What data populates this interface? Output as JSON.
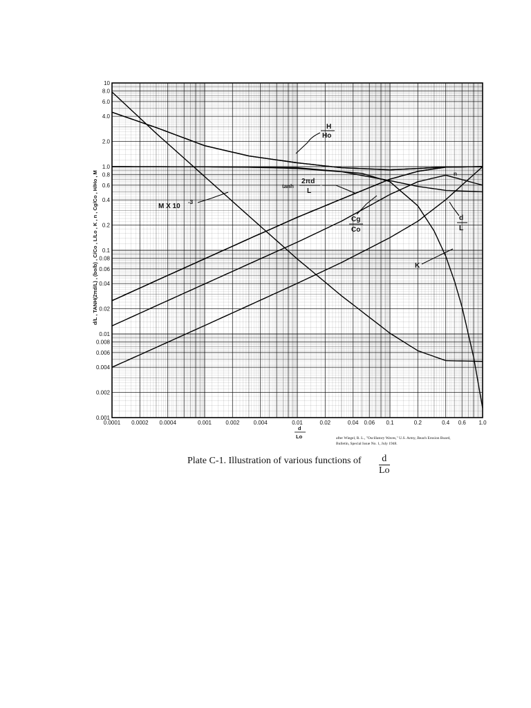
{
  "chart_data": {
    "type": "line",
    "xscale": "log",
    "yscale": "log",
    "xlim": [
      0.0001,
      1.0
    ],
    "ylim": [
      0.001,
      10
    ],
    "grid": true,
    "x_ticks": [
      "0.0001",
      "0.0002",
      "0.0004",
      "0.001",
      "0.002",
      "0.004",
      "0.01",
      "0.02",
      "0.04",
      "0.06",
      "0.1",
      "0.2",
      "0.4",
      "0.6",
      "1.0"
    ],
    "y_ticks": [
      "0.001",
      "0.002",
      "0.004",
      "0.006",
      "0.008",
      "0.01",
      "0.02",
      "0.04",
      "0.06",
      "0.08",
      "0.1",
      "0.2",
      "0.4",
      "0.6",
      "0.8",
      "1.0",
      "2.0",
      "4.0",
      "6.0",
      "8.0",
      "10"
    ],
    "xlabel_num": "d",
    "xlabel_den": "Lo",
    "ylabel": "d/L , TANH(2πd/L) , (bo/b) , C/Co , L/Lo , K , n , Cg/Co , H/Ho , M",
    "series": [
      {
        "x": [
          0.0001,
          0.0003,
          0.001,
          0.003,
          0.01,
          0.03,
          0.1,
          0.2,
          0.4,
          1.0
        ],
        "y": [
          0.004,
          0.0069,
          0.0126,
          0.0219,
          0.0403,
          0.0714,
          0.1417,
          0.2225,
          0.4023,
          1.0
        ]
      },
      {
        "x": [
          0.0001,
          0.0003,
          0.001,
          0.003,
          0.01,
          0.03,
          0.1,
          0.2,
          0.4,
          1.0
        ],
        "y": [
          0.025,
          0.0434,
          0.0792,
          0.137,
          0.248,
          0.41,
          0.708,
          0.878,
          0.985,
          1.0
        ]
      },
      {
        "x": [
          0.0001,
          0.0003,
          0.001,
          0.003,
          0.01,
          0.03,
          0.1,
          0.2,
          0.4,
          1.0
        ],
        "y": [
          0.025,
          0.0434,
          0.0792,
          0.137,
          0.248,
          0.41,
          0.708,
          0.878,
          0.985,
          1.0
        ]
      },
      {
        "x": [
          0.0001,
          0.0003,
          0.001,
          0.003,
          0.01,
          0.03,
          0.1,
          0.2,
          0.4,
          1.0
        ],
        "y": [
          0.0125,
          0.0217,
          0.0396,
          0.0686,
          0.125,
          0.223,
          0.465,
          0.66,
          0.79,
          0.6
        ]
      },
      {
        "x": [
          0.0001,
          0.0003,
          0.001,
          0.003,
          0.01,
          0.03,
          0.1,
          0.2,
          0.4,
          1.0
        ],
        "y": [
          4.47,
          2.93,
          1.78,
          1.34,
          1.11,
          0.97,
          0.915,
          0.95,
          0.99,
          1.0
        ]
      },
      {
        "x": [
          0.0001,
          0.0003,
          0.001,
          0.003,
          0.01,
          0.03,
          0.1,
          0.2,
          0.4,
          1.0
        ],
        "y": [
          1.0,
          0.998,
          0.995,
          0.985,
          0.95,
          0.87,
          0.68,
          0.58,
          0.52,
          0.5
        ]
      },
      {
        "x": [
          0.0001,
          0.0003,
          0.001,
          0.003,
          0.01,
          0.03,
          0.1,
          0.2,
          0.4,
          1.0
        ],
        "y": [
          4.47,
          2.93,
          1.78,
          1.34,
          1.11,
          0.97,
          0.915,
          0.95,
          0.99,
          1.0
        ]
      },
      {
        "x": [
          0.0001,
          0.001,
          0.01,
          0.05,
          0.1,
          0.2,
          0.3,
          0.4,
          0.5,
          0.6,
          0.8,
          1.0
        ],
        "y": [
          1.0,
          0.995,
          0.97,
          0.83,
          0.66,
          0.34,
          0.17,
          0.085,
          0.042,
          0.021,
          0.0053,
          0.0013
        ]
      },
      {
        "x": [
          0.0001,
          0.0003,
          0.001,
          0.003,
          0.01,
          0.03,
          0.1,
          0.2,
          0.4,
          1.0
        ],
        "y": [
          7.8,
          2.5,
          0.76,
          0.257,
          0.0787,
          0.0286,
          0.0102,
          0.0063,
          0.0048,
          0.0047
        ]
      }
    ],
    "labels": {
      "h_ho": {
        "num": "H",
        "den": "Ho"
      },
      "tanh": {
        "prefix": "tanh",
        "num": "2πd",
        "den": "L"
      },
      "cg_co": {
        "num": "Cg",
        "den": "Co"
      },
      "d_l": {
        "num": "d",
        "den": "L"
      },
      "k": "K",
      "n": "n",
      "m": "M X 10",
      "m_exp": "-3"
    }
  },
  "credit": {
    "line1": "after Wiegel, R. L., \"Oscillatory Waves,\" U.S. Army, Beach Erosion Board,",
    "line2": "Bulletin, Special Issue No. 1, July 1948."
  },
  "caption": {
    "text": "Plate C-1.  Illustration of various functions of",
    "frac_num": "d",
    "frac_den": "Lo"
  }
}
